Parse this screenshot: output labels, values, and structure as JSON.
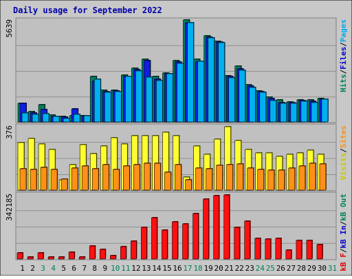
{
  "chart_data": {
    "type": "bar",
    "title": "Daily usage for September 2022",
    "categories": [
      "1",
      "2",
      "3",
      "4",
      "5",
      "6",
      "7",
      "8",
      "9",
      "10",
      "11",
      "12",
      "13",
      "14",
      "15",
      "16",
      "17",
      "18",
      "19",
      "20",
      "21",
      "22",
      "23",
      "24",
      "25",
      "26",
      "27",
      "28",
      "29",
      "30",
      "31"
    ],
    "weekend_days": [
      3,
      4,
      10,
      11,
      17,
      18,
      24,
      25,
      31
    ],
    "panels": [
      {
        "id": "top",
        "max_label": "5639",
        "ymax": 5639,
        "legend": [
          {
            "text": "Hits",
            "color": "#00805c"
          },
          {
            "text": "/",
            "color": "#000000"
          },
          {
            "text": "Files",
            "color": "#0000cc"
          },
          {
            "text": "/",
            "color": "#000000"
          },
          {
            "text": "Pages",
            "color": "#00aaee"
          }
        ],
        "series": [
          {
            "name": "Hits",
            "color": "#00805c",
            "values": [
              1010,
              580,
              970,
              370,
              300,
              340,
              360,
              2510,
              1770,
              1760,
              2600,
              2970,
              3460,
              2500,
              2720,
              3390,
              5639,
              3460,
              4760,
              4470,
              2560,
              3080,
              2040,
              1730,
              1360,
              1210,
              1090,
              1220,
              1210,
              1300
            ]
          },
          {
            "name": "Files",
            "color": "#1020e0",
            "values": [
              1010,
              510,
              700,
              320,
              280,
              720,
              300,
              2250,
              1690,
              1700,
              2510,
              2890,
              3400,
              2380,
              2650,
              3300,
              5470,
              3310,
              4690,
              4410,
              2500,
              2920,
              1990,
              1690,
              1290,
              1080,
              1050,
              1190,
              1130,
              1270
            ]
          },
          {
            "name": "Pages",
            "color": "#00b0f0",
            "values": [
              480,
              430,
              470,
              320,
              180,
              410,
              330,
              2350,
              1620,
              1660,
              2500,
              2830,
              2470,
              2280,
              2650,
              3250,
              5500,
              3350,
              4630,
              4370,
              2440,
              2850,
              1920,
              1620,
              1190,
              1030,
              1030,
              1140,
              1050,
              1260
            ]
          }
        ]
      },
      {
        "id": "middle",
        "max_label": "376",
        "ymax": 376,
        "legend": [
          {
            "text": "Visits",
            "color": "#c8c800"
          },
          {
            "text": "/",
            "color": "#000000"
          },
          {
            "text": "Sites",
            "color": "#ff9010"
          }
        ],
        "series": [
          {
            "name": "Visits",
            "color": "#ffff30",
            "values": [
              280,
              303,
              272,
              240,
              60,
              150,
              265,
              215,
              260,
              306,
              270,
              318,
              318,
              318,
              340,
              318,
              75,
              258,
              210,
              300,
              370,
              290,
              240,
              220,
              220,
              200,
              212,
              220,
              235,
              210
            ]
          },
          {
            "name": "Sites",
            "color": "#ff9018",
            "values": [
              125,
              120,
              135,
              120,
              65,
              130,
              140,
              125,
              150,
              120,
              140,
              148,
              158,
              158,
              105,
              148,
              60,
              128,
              125,
              145,
              150,
              155,
              130,
              120,
              118,
              118,
              128,
              140,
              158,
              155
            ]
          }
        ]
      },
      {
        "id": "bottom",
        "max_label": "342185",
        "ymax": 342185,
        "legend": [
          {
            "text": "kB F",
            "color": "#dd0000"
          },
          {
            "text": "/",
            "color": "#000000"
          },
          {
            "text": "kB In",
            "color": "#0000cc"
          },
          {
            "text": "/",
            "color": "#000000"
          },
          {
            "text": "kB Out",
            "color": "#00805c"
          }
        ],
        "series": [
          {
            "name": "kB F",
            "color": "#ff1010",
            "values": [
              33000,
              12000,
              32000,
              10000,
              12000,
              35000,
              10000,
              70000,
              50000,
              18000,
              67000,
              95000,
              168000,
              218000,
              153000,
              197000,
              185000,
              240000,
              318000,
              334000,
              338000,
              168000,
              202000,
              108000,
              105000,
              110000,
              46000,
              98000,
              98000,
              78000
            ]
          }
        ]
      }
    ]
  }
}
